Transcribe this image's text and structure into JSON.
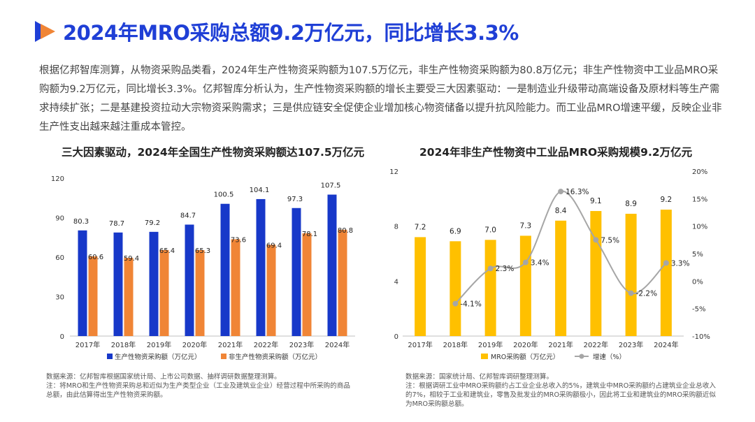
{
  "header": {
    "title": "2024年MRO采购总额9.2万亿元，同比增长3.3%",
    "logo_icon": "play-triangle-logo-icon"
  },
  "intro": {
    "text": "根据亿邦智库测算，从物资采购品类看，2024年生产性物资采购额为107.5万亿元，非生产性物资采购额为80.8万亿元；非生产性物资中工业品MRO采购额为9.2万亿元，同比增长3.3%。亿邦智库分析认为，生产性物资采购额的增长主要受三大因素驱动：一是制造业升级带动高端设备及原材料等生产需求持续扩张；二是基建投资拉动大宗物资采购需求；三是供应链安全促使企业增加核心物资储备以提升抗风险能力。而工业品MRO增速平缓，反映企业非生产性支出越来越注重成本管控。"
  },
  "colors": {
    "title_blue": "#1f3fd6",
    "bar_blue": "#1738c9",
    "bar_orange": "#f08536",
    "bar_yellow": "#ffc000",
    "line_grey": "#a6a6a6"
  },
  "left_note": {
    "source": "数据来源：亿邦智库根据国家统计局、上市公司数据、抽样调研数据整理测算。",
    "note": "注：将MRO和生产性物资采购总和近似为生产类型企业（工业及建筑业企业）经营过程中所采购的商品总额，由此估算得出生产性物资采购额。"
  },
  "right_note": {
    "source": "数据来源：国家统计局、亿邦智库调研整理测算。",
    "note": "注：根据调研工业中MRO采购额约占工业企业总收入的5%，建筑业中MRO采购额约占建筑业企业总收入的7%，相较于工业和建筑业，零售及批发业的MRO采购额极小，因此将工业和建筑业的MRO采购额近似为MRO采购额总额。"
  },
  "chart_data": [
    {
      "type": "bar",
      "title": "三大因素驱动，2024年全国生产性物资采购额达107.5万亿元",
      "categories": [
        "2017年",
        "2018年",
        "2019年",
        "2020年",
        "2021年",
        "2022年",
        "2023年",
        "2024年"
      ],
      "series": [
        {
          "name": "生产性物资采购额（万亿元）",
          "values": [
            80.3,
            78.7,
            79.2,
            84.7,
            100.5,
            104.1,
            97.3,
            107.5
          ]
        },
        {
          "name": "非生产性物资采购额（万亿元）",
          "values": [
            60.6,
            59.4,
            65.4,
            65.3,
            73.6,
            69.4,
            78.1,
            80.8
          ]
        }
      ],
      "yticks": [
        "0",
        "30",
        "60",
        "90",
        "120"
      ],
      "ylim": [
        0,
        120
      ],
      "legend": "bottom"
    },
    {
      "type": "bar+line",
      "title": "2024年非生产性物资中工业品MRO采购规模9.2万亿元",
      "categories": [
        "2017年",
        "2018年",
        "2019年",
        "2020年",
        "2021年",
        "2022年",
        "2023年",
        "2024年"
      ],
      "bar_series": {
        "name": "MRO采购额（万亿元）",
        "values": [
          7.2,
          6.9,
          7.0,
          7.3,
          8.4,
          9.1,
          8.9,
          9.2
        ],
        "labels": [
          "7.2",
          "6.9",
          "7.0",
          "7.3",
          "8.4",
          "9.1",
          "8.9",
          "9.2"
        ]
      },
      "line_series": {
        "name": "增速（%）",
        "values": [
          null,
          -4.1,
          2.3,
          3.4,
          16.3,
          7.5,
          -2.2,
          3.3
        ],
        "labels": [
          "",
          "-4.1%",
          "2.3%",
          "3.4%",
          "16.3%",
          "7.5%",
          "-2.2%",
          "3.3%"
        ]
      },
      "yticks_left": [
        "0",
        "4",
        "8",
        "12"
      ],
      "ylim_left": [
        0,
        12
      ],
      "yticks_right": [
        "-10%",
        "-5%",
        "0%",
        "5%",
        "10%",
        "15%",
        "20%"
      ],
      "ylim_right": [
        -10,
        20
      ],
      "legend": "bottom"
    }
  ]
}
